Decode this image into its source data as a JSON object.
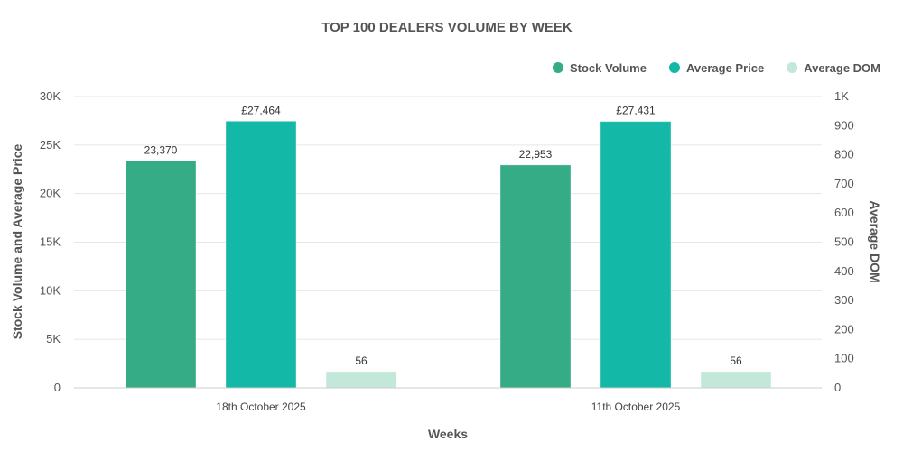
{
  "chart_data": {
    "type": "bar",
    "title": "TOP 100 DEALERS VOLUME BY WEEK",
    "xlabel": "Weeks",
    "ylabel_left": "Stock Volume and Average Price",
    "ylabel_right": "Average DOM",
    "categories": [
      "18th October 2025",
      "11th October 2025"
    ],
    "left_axis": {
      "min": 0,
      "max": 30000,
      "ticks": [
        0,
        5000,
        10000,
        15000,
        20000,
        25000,
        30000
      ],
      "tick_labels": [
        "0",
        "5K",
        "10K",
        "15K",
        "20K",
        "25K",
        "30K"
      ]
    },
    "right_axis": {
      "min": 0,
      "max": 1000,
      "ticks": [
        0,
        100,
        200,
        300,
        400,
        500,
        600,
        700,
        800,
        900,
        1000
      ],
      "tick_labels": [
        "0",
        "100",
        "200",
        "300",
        "400",
        "500",
        "600",
        "700",
        "800",
        "900",
        "1K"
      ]
    },
    "series": [
      {
        "name": "Stock Volume",
        "axis": "left",
        "color": "#36ac86",
        "values": [
          23370,
          22953
        ],
        "labels": [
          "23,370",
          "22,953"
        ]
      },
      {
        "name": "Average Price",
        "axis": "left",
        "color": "#14b8a6",
        "values": [
          27464,
          27431
        ],
        "labels": [
          "£27,464",
          "£27,431"
        ]
      },
      {
        "name": "Average DOM",
        "axis": "right",
        "color": "#c3e8da",
        "values": [
          56,
          56
        ],
        "labels": [
          "56",
          "56"
        ]
      }
    ],
    "legend_position": "top-right",
    "grid": true
  }
}
